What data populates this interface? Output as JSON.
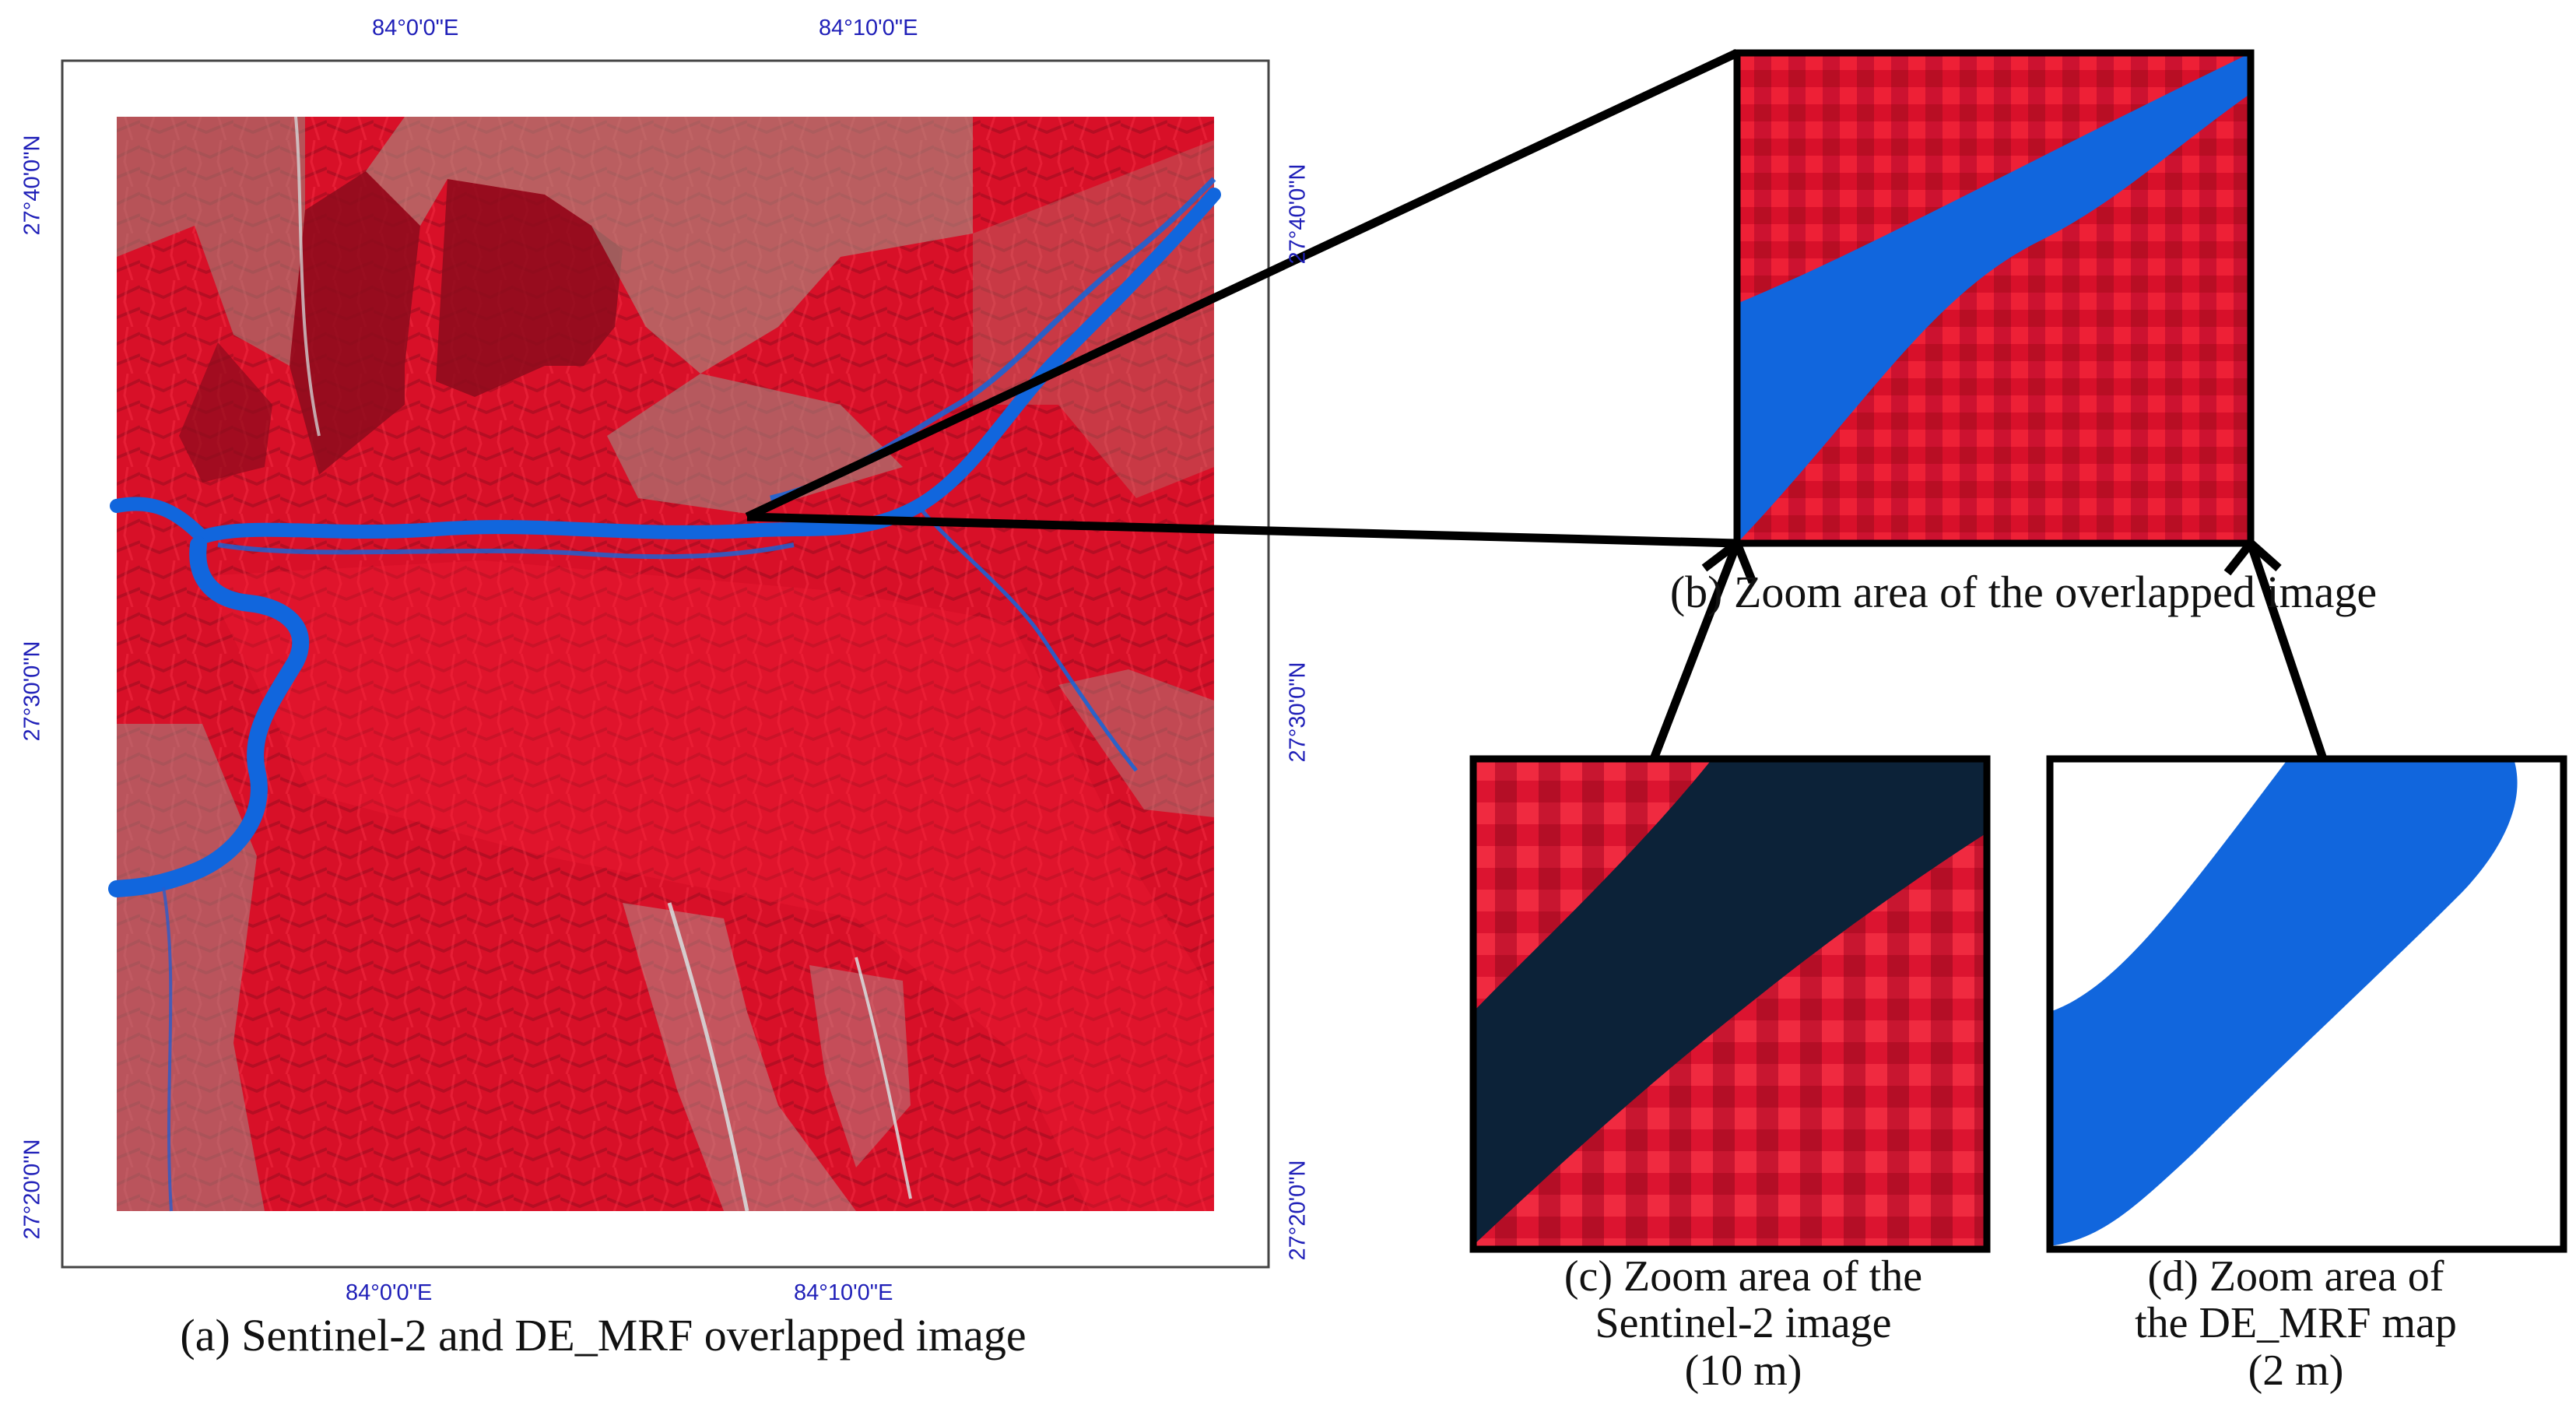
{
  "colors": {
    "vegetation_red": "#e3102b",
    "dark_red": "#8c0c1c",
    "river_blue": "#1166dd",
    "water_dark": "#0c2238",
    "coord_label_blue": "#1f1fb8"
  },
  "main_map": {
    "top_lon_labels": [
      "84°0'0\"E",
      "84°10'0\"E"
    ],
    "bottom_lon_labels": [
      "84°0'0\"E",
      "84°10'0\"E"
    ],
    "left_lat_labels": [
      "27°40'0\"N",
      "27°30'0\"N",
      "27°20'0\"N"
    ],
    "right_lat_labels": [
      "27°40'0\"N",
      "27°30'0\"N",
      "27°20'0\"N"
    ],
    "caption": "(a) Sentinel-2 and DE_MRF overlapped image"
  },
  "panel_b": {
    "caption": "(b) Zoom area of the overlapped image"
  },
  "panel_c": {
    "caption_lines": [
      "(c) Zoom area of the",
      "Sentinel-2 image",
      "(10 m)"
    ]
  },
  "panel_d": {
    "caption_lines": [
      "(d) Zoom area of",
      "the DE_MRF map",
      "(2 m)"
    ]
  }
}
